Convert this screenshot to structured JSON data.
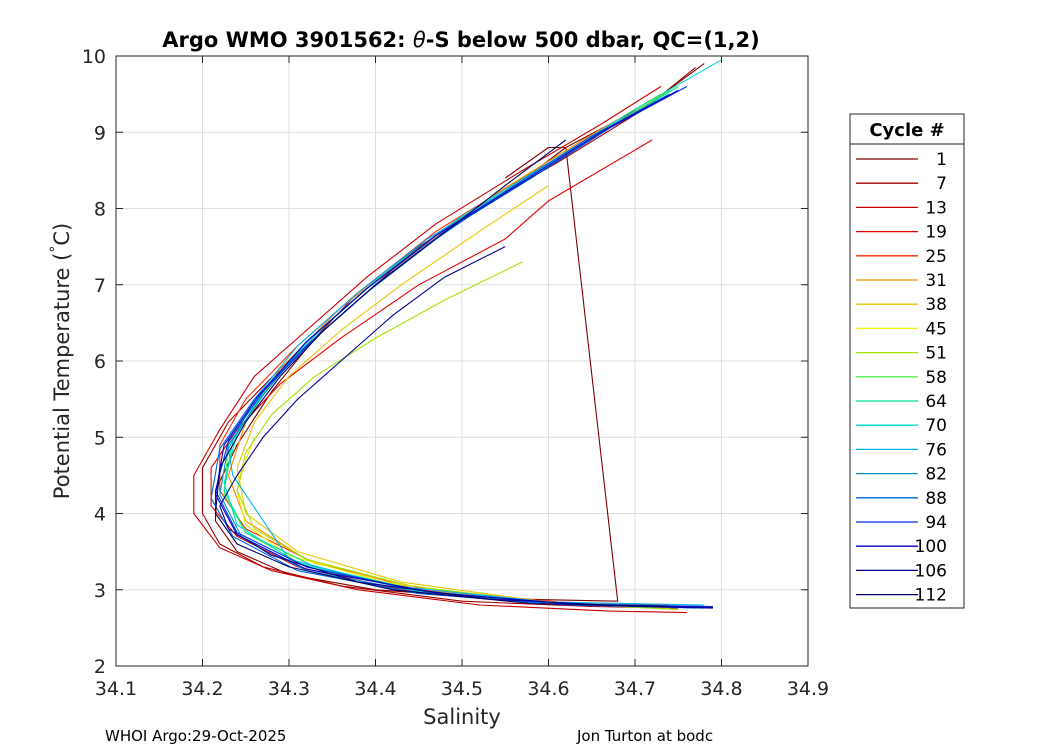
{
  "chart_data": {
    "type": "line",
    "title_prefix": "Argo WMO 3901562: ",
    "title_theta": "θ",
    "title_suffix": "-S below 500 dbar,  QC=(1,2)",
    "xlabel": "Salinity",
    "ylabel_main": "Potential Temperature (",
    "ylabel_degree": "°",
    "ylabel_end": "C)",
    "xlim": [
      34.1,
      34.9
    ],
    "ylim": [
      2,
      10
    ],
    "xticks": [
      "34.1",
      "34.2",
      "34.3",
      "34.4",
      "34.5",
      "34.6",
      "34.7",
      "34.8",
      "34.9"
    ],
    "yticks": [
      "2",
      "3",
      "4",
      "5",
      "6",
      "7",
      "8",
      "9",
      "10"
    ],
    "grid": true,
    "legend_position": "outside-right",
    "legend_title": "Cycle #",
    "legend": [
      {
        "label": "1",
        "color": "#800000"
      },
      {
        "label": "7",
        "color": "#a00000"
      },
      {
        "label": "13",
        "color": "#c80000"
      },
      {
        "label": "19",
        "color": "#e60000"
      },
      {
        "label": "25",
        "color": "#ff2800"
      },
      {
        "label": "31",
        "color": "#ff8c00"
      },
      {
        "label": "38",
        "color": "#e6c800"
      },
      {
        "label": "45",
        "color": "#f0f000"
      },
      {
        "label": "51",
        "color": "#a0e600"
      },
      {
        "label": "58",
        "color": "#50f050"
      },
      {
        "label": "64",
        "color": "#00e68c"
      },
      {
        "label": "70",
        "color": "#00dcc8"
      },
      {
        "label": "76",
        "color": "#00b4f0"
      },
      {
        "label": "82",
        "color": "#0096c8"
      },
      {
        "label": "88",
        "color": "#0064e6"
      },
      {
        "label": "94",
        "color": "#0032dc"
      },
      {
        "label": "100",
        "color": "#0000c8"
      },
      {
        "label": "106",
        "color": "#000096"
      },
      {
        "label": "112",
        "color": "#000064"
      }
    ],
    "series": [
      {
        "name": "1",
        "color": "#800000",
        "x": [
          34.78,
          34.72,
          34.62,
          34.55,
          34.45,
          34.38,
          34.33,
          34.28,
          34.24,
          34.215,
          34.215,
          34.24,
          34.3,
          34.4,
          34.55,
          34.68,
          34.62,
          34.6,
          34.55
        ],
        "y": [
          9.9,
          9.4,
          8.8,
          8.2,
          7.5,
          6.9,
          6.3,
          5.6,
          4.9,
          4.3,
          3.9,
          3.5,
          3.2,
          3.0,
          2.88,
          2.85,
          8.8,
          8.8,
          8.4
        ]
      },
      {
        "name": "7",
        "color": "#a00000",
        "x": [
          34.77,
          34.71,
          34.61,
          34.5,
          34.42,
          34.35,
          34.29,
          34.23,
          34.2,
          34.2,
          34.22,
          34.27,
          34.36,
          34.5,
          34.65,
          34.75
        ],
        "y": [
          9.85,
          9.3,
          8.6,
          7.9,
          7.2,
          6.5,
          5.9,
          5.2,
          4.6,
          4.0,
          3.6,
          3.3,
          3.05,
          2.85,
          2.78,
          2.76
        ]
      },
      {
        "name": "13",
        "color": "#c80000",
        "x": [
          34.73,
          34.66,
          34.57,
          34.47,
          34.39,
          34.32,
          34.26,
          34.22,
          34.19,
          34.19,
          34.22,
          34.28,
          34.38,
          34.52,
          34.67,
          34.76
        ],
        "y": [
          9.6,
          9.1,
          8.5,
          7.8,
          7.1,
          6.4,
          5.8,
          5.1,
          4.5,
          4.0,
          3.55,
          3.25,
          3.0,
          2.8,
          2.72,
          2.7
        ]
      },
      {
        "name": "19",
        "color": "#e60000",
        "x": [
          34.72,
          34.6,
          34.55,
          34.45,
          34.36,
          34.29,
          34.24,
          34.21,
          34.21,
          34.24,
          34.31,
          34.43,
          34.58,
          34.72
        ],
        "y": [
          8.9,
          8.1,
          7.6,
          7.0,
          6.3,
          5.7,
          5.1,
          4.6,
          4.1,
          3.7,
          3.3,
          3.0,
          2.85,
          2.8
        ]
      },
      {
        "name": "25",
        "color": "#ff2800",
        "x": [
          34.74,
          34.67,
          34.57,
          34.47,
          34.38,
          34.31,
          34.25,
          34.22,
          34.22,
          34.25,
          34.33,
          34.46,
          34.62,
          34.74
        ],
        "y": [
          9.55,
          9.05,
          8.4,
          7.7,
          6.9,
          6.2,
          5.5,
          4.9,
          4.3,
          3.8,
          3.35,
          3.0,
          2.83,
          2.8
        ]
      },
      {
        "name": "31",
        "color": "#ff8c00",
        "x": [
          34.73,
          34.64,
          34.54,
          34.44,
          34.36,
          34.29,
          34.25,
          34.23,
          34.25,
          34.32,
          34.45,
          34.61,
          34.74
        ],
        "y": [
          9.5,
          8.9,
          8.2,
          7.4,
          6.7,
          5.9,
          5.2,
          4.5,
          3.9,
          3.4,
          3.0,
          2.82,
          2.78
        ]
      },
      {
        "name": "38",
        "color": "#e6c800",
        "x": [
          34.6,
          34.52,
          34.43,
          34.36,
          34.3,
          34.26,
          34.24,
          34.25,
          34.31,
          34.43,
          34.59,
          34.74
        ],
        "y": [
          8.3,
          7.7,
          7.0,
          6.4,
          5.8,
          5.2,
          4.6,
          4.0,
          3.5,
          3.1,
          2.85,
          2.76
        ]
      },
      {
        "name": "45",
        "color": "#f0f000",
        "x": [
          34.26,
          34.25,
          34.24,
          34.25,
          34.3,
          34.41,
          34.56,
          34.72
        ],
        "y": [
          5.0,
          4.7,
          4.3,
          3.85,
          3.45,
          3.1,
          2.87,
          2.76
        ]
      },
      {
        "name": "51",
        "color": "#a0e600",
        "x": [
          34.57,
          34.48,
          34.4,
          34.33,
          34.28,
          34.25,
          34.24,
          34.26,
          34.32,
          34.44,
          34.6,
          34.75
        ],
        "y": [
          7.3,
          6.8,
          6.3,
          5.8,
          5.3,
          4.8,
          4.3,
          3.8,
          3.4,
          3.05,
          2.83,
          2.74
        ]
      },
      {
        "name": "58",
        "color": "#50f050",
        "x": [
          34.74,
          34.66,
          34.57,
          34.47,
          34.39,
          34.32,
          34.27,
          34.23,
          34.225,
          34.25,
          34.32,
          34.45,
          34.61,
          34.76
        ],
        "y": [
          9.55,
          9.0,
          8.35,
          7.65,
          6.95,
          6.25,
          5.55,
          4.9,
          4.25,
          3.75,
          3.3,
          2.98,
          2.82,
          2.77
        ]
      },
      {
        "name": "64",
        "color": "#00e68c",
        "x": [
          34.75,
          34.67,
          34.58,
          34.48,
          34.4,
          34.33,
          34.27,
          34.235,
          34.225,
          34.25,
          34.33,
          34.46,
          34.63,
          34.77
        ],
        "y": [
          9.6,
          9.05,
          8.4,
          7.7,
          7.0,
          6.3,
          5.6,
          4.95,
          4.3,
          3.75,
          3.3,
          2.97,
          2.81,
          2.76
        ]
      },
      {
        "name": "70",
        "color": "#00dcc8",
        "x": [
          34.8,
          34.7,
          34.6,
          34.5,
          34.41,
          34.34,
          34.28,
          34.24,
          34.225,
          34.24,
          34.31,
          34.44,
          34.61,
          34.78
        ],
        "y": [
          9.95,
          9.3,
          8.6,
          7.9,
          7.15,
          6.45,
          5.75,
          5.05,
          4.4,
          3.85,
          3.35,
          3.0,
          2.82,
          2.78
        ]
      },
      {
        "name": "76",
        "color": "#00b4f0",
        "x": [
          34.74,
          34.65,
          34.56,
          34.46,
          34.38,
          34.31,
          34.26,
          34.23,
          34.235,
          34.3,
          34.42,
          34.6,
          34.78
        ],
        "y": [
          9.5,
          8.95,
          8.3,
          7.6,
          6.9,
          6.2,
          5.5,
          4.85,
          4.5,
          3.4,
          3.05,
          2.84,
          2.8
        ]
      },
      {
        "name": "82",
        "color": "#0096c8",
        "x": [
          34.75,
          34.66,
          34.57,
          34.47,
          34.39,
          34.32,
          34.27,
          34.23,
          34.22,
          34.245,
          34.32,
          34.46,
          34.63,
          34.78
        ],
        "y": [
          9.55,
          9.0,
          8.35,
          7.65,
          6.95,
          6.25,
          5.55,
          4.9,
          4.25,
          3.7,
          3.25,
          2.95,
          2.8,
          2.77
        ]
      },
      {
        "name": "88",
        "color": "#0064e6",
        "x": [
          34.74,
          34.65,
          34.56,
          34.47,
          34.39,
          34.32,
          34.26,
          34.22,
          34.21,
          34.235,
          34.31,
          34.45,
          34.62,
          34.78
        ],
        "y": [
          9.5,
          8.95,
          8.3,
          7.6,
          6.9,
          6.2,
          5.5,
          4.85,
          4.2,
          3.7,
          3.25,
          2.95,
          2.8,
          2.76
        ]
      },
      {
        "name": "94",
        "color": "#0032dc",
        "x": [
          34.76,
          34.67,
          34.58,
          34.48,
          34.4,
          34.33,
          34.27,
          34.23,
          34.215,
          34.24,
          34.32,
          34.46,
          34.63,
          34.79
        ],
        "y": [
          9.6,
          9.05,
          8.4,
          7.7,
          7.0,
          6.3,
          5.6,
          4.95,
          4.3,
          3.75,
          3.3,
          2.97,
          2.81,
          2.78
        ]
      },
      {
        "name": "100",
        "color": "#0000c8",
        "x": [
          34.75,
          34.66,
          34.57,
          34.47,
          34.39,
          34.32,
          34.265,
          34.225,
          34.215,
          34.24,
          34.32,
          34.47,
          34.64,
          34.79
        ],
        "y": [
          9.55,
          9.0,
          8.35,
          7.65,
          6.95,
          6.25,
          5.55,
          4.9,
          4.25,
          3.72,
          3.27,
          2.96,
          2.8,
          2.77
        ]
      },
      {
        "name": "106",
        "color": "#000096",
        "x": [
          34.55,
          34.48,
          34.42,
          34.36,
          34.31,
          34.27,
          34.24,
          34.22,
          34.23,
          34.28,
          34.38,
          34.53,
          34.7,
          34.79
        ],
        "y": [
          7.5,
          7.1,
          6.6,
          6.0,
          5.5,
          5.0,
          4.5,
          4.1,
          3.8,
          3.45,
          3.1,
          2.88,
          2.78,
          2.76
        ]
      },
      {
        "name": "112",
        "color": "#000064",
        "x": [
          34.62,
          34.55,
          34.47,
          34.4,
          34.34,
          34.29,
          34.25,
          34.22,
          34.215,
          34.24,
          34.3,
          34.42,
          34.58,
          34.74
        ],
        "y": [
          8.9,
          8.3,
          7.6,
          7.0,
          6.4,
          5.8,
          5.2,
          4.6,
          4.0,
          3.6,
          3.3,
          3.0,
          2.82,
          2.78
        ]
      }
    ]
  },
  "footer": {
    "left": "WHOI Argo:29-Oct-2025",
    "right": "Jon Turton at bodc"
  }
}
